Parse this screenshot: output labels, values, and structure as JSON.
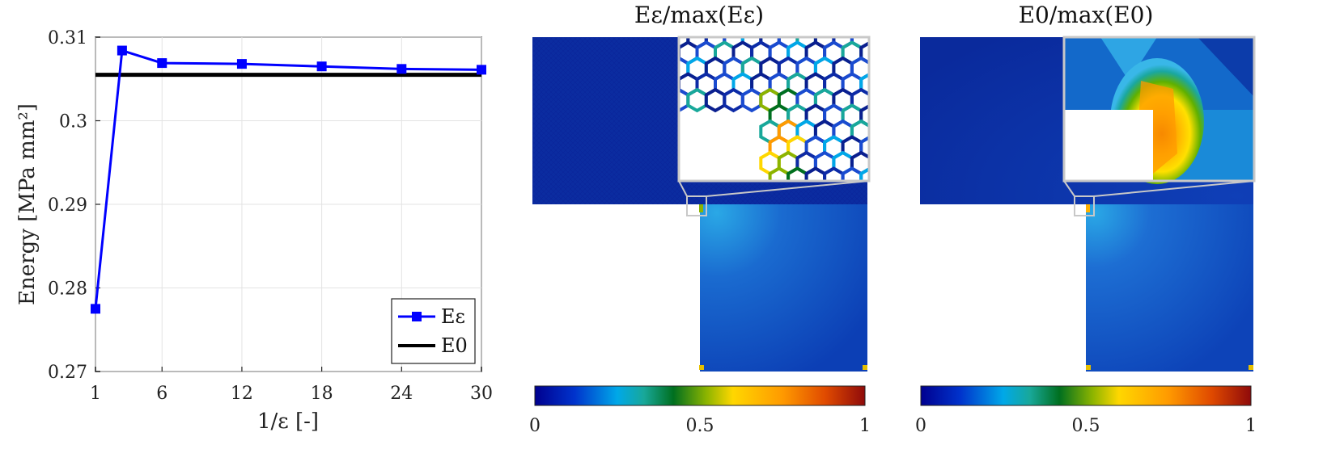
{
  "chart_data": [
    {
      "type": "line",
      "xlabel": "1/ε [-]",
      "ylabel": "Energy [MPa mm²]",
      "xlim": [
        1,
        30
      ],
      "ylim": [
        0.27,
        0.31
      ],
      "xticks": [
        "1",
        "6",
        "12",
        "18",
        "24",
        "30"
      ],
      "xtick_values": [
        1,
        6,
        12,
        18,
        24,
        30
      ],
      "yticks": [
        "0.27",
        "0.28",
        "0.29",
        "0.3",
        "0.31"
      ],
      "ytick_values": [
        0.27,
        0.28,
        0.29,
        0.3,
        0.31
      ],
      "grid": true,
      "legend_position": "bottom-right",
      "series": [
        {
          "name": "Eε",
          "color": "#0000ff",
          "marker": "square",
          "x": [
            1,
            3,
            6,
            12,
            18,
            24,
            30
          ],
          "y": [
            0.2775,
            0.3084,
            0.3069,
            0.3068,
            0.3065,
            0.3062,
            0.3061
          ]
        },
        {
          "name": "E0",
          "color": "#000000",
          "marker": "none",
          "x": [
            1,
            30
          ],
          "y": [
            0.3055,
            0.3055
          ]
        }
      ]
    },
    {
      "type": "heatmap",
      "title": "Eε/max(Eε)",
      "colorbar_ticks": [
        "0",
        "0.5",
        "1"
      ],
      "colormap": "jet"
    },
    {
      "type": "heatmap",
      "title": "E0/max(E0)",
      "colorbar_ticks": [
        "0",
        "0.5",
        "1"
      ],
      "colormap": "jet"
    }
  ]
}
